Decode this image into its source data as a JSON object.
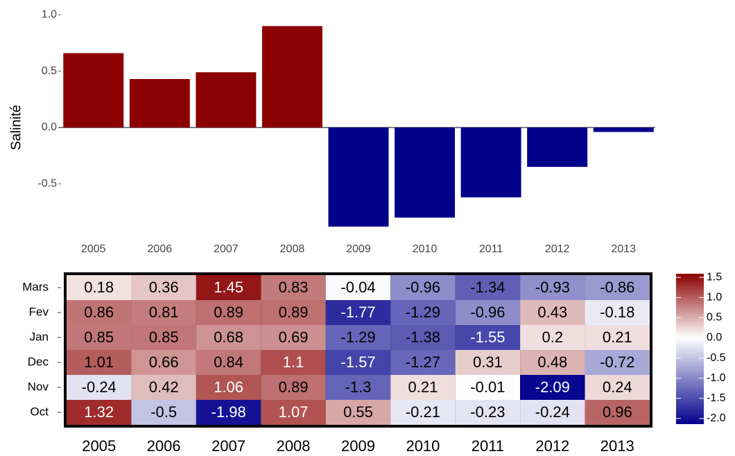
{
  "chart_data": [
    {
      "type": "bar",
      "ylabel": "Salinité",
      "categories": [
        "2005",
        "2006",
        "2007",
        "2008",
        "2009",
        "2010",
        "2011",
        "2012",
        "2013"
      ],
      "values": [
        0.66,
        0.43,
        0.49,
        0.9,
        -0.88,
        -0.8,
        -0.62,
        -0.35,
        -0.04
      ],
      "color_positive": "#8b0000",
      "color_negative": "#00008b",
      "ylim": [
        -0.96,
        1.07
      ],
      "yticks": [
        {
          "value": 1,
          "label": "1.0"
        },
        0.5,
        {
          "value": 0,
          "label": "0.0"
        },
        -0.5
      ]
    },
    {
      "type": "heatmap",
      "x": [
        "2005",
        "2006",
        "2007",
        "2008",
        "2009",
        "2010",
        "2011",
        "2012",
        "2013"
      ],
      "y": [
        "Mars",
        "Fev",
        "Jan",
        "Dec",
        "Nov",
        "Oct"
      ],
      "values": [
        [
          0.18,
          0.36,
          1.45,
          0.83,
          -0.04,
          -0.96,
          -1.34,
          -0.93,
          -0.86
        ],
        [
          0.86,
          0.81,
          0.89,
          0.89,
          -1.77,
          -1.29,
          -0.96,
          0.43,
          -0.18
        ],
        [
          0.85,
          0.85,
          0.68,
          0.69,
          -1.29,
          -1.38,
          -1.55,
          0.2,
          0.21
        ],
        [
          1.01,
          0.66,
          0.84,
          1.1,
          -1.57,
          -1.27,
          0.31,
          0.48,
          -0.72
        ],
        [
          -0.24,
          0.42,
          1.06,
          0.89,
          -1.3,
          0.21,
          -0.01,
          -2.09,
          0.24
        ],
        [
          1.32,
          -0.5,
          -1.98,
          1.07,
          0.55,
          -0.21,
          -0.23,
          -0.24,
          0.96
        ]
      ],
      "color_low": "#00008b",
      "color_mid": "#ffffff",
      "color_high": "#8b0000",
      "zlim": [
        -2.14,
        1.59
      ],
      "zticks": [
        1.5,
        {
          "value": 1,
          "label": "1.0"
        },
        0.5,
        {
          "value": 0,
          "label": "0.0"
        },
        -0.5,
        {
          "value": -1,
          "label": "-1.0"
        },
        -1.5,
        {
          "value": -2,
          "label": "-2.0"
        }
      ]
    }
  ]
}
